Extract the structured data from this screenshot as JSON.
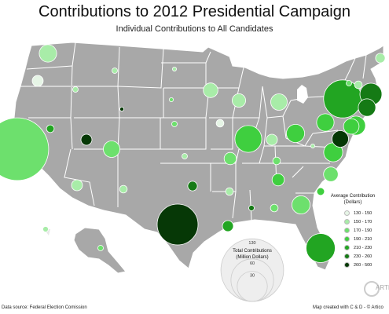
{
  "header": {
    "title": "Contributions to 2012 Presidential Campaign",
    "subtitle": "Individual Contributions to All Candidates"
  },
  "legend": {
    "title_line1": "Average Contribution",
    "title_line2": "(Dollars)",
    "items": [
      {
        "label": "130 - 150",
        "color": "#e6f5e6"
      },
      {
        "label": "150 - 170",
        "color": "#a8eca8"
      },
      {
        "label": "170 - 190",
        "color": "#6de06d"
      },
      {
        "label": "190 - 210",
        "color": "#3fcf3f"
      },
      {
        "label": "210 - 230",
        "color": "#22a522"
      },
      {
        "label": "230 - 260",
        "color": "#157a15"
      },
      {
        "label": "260 - 500",
        "color": "#063806"
      }
    ]
  },
  "size_legend": {
    "title_line1": "Total Contributions",
    "title_line2": "(Million Dollars)",
    "values": [
      130,
      60,
      30
    ]
  },
  "footer": {
    "source": "Data source: Federal Election Comission",
    "credit": "Map created with C & D - © Artico"
  },
  "logo_text": "ARTIC",
  "colors": {
    "land": "#a8a8a8",
    "border": "#ffffff",
    "background": "#ffffff"
  },
  "bubbles": [
    {
      "state": "WA",
      "color": "#a8eca8",
      "total": 10
    },
    {
      "state": "OR",
      "color": "#e6f5e6",
      "total": 4
    },
    {
      "state": "CA",
      "color": "#6de06d",
      "total": 130
    },
    {
      "state": "NV",
      "color": "#22a522",
      "total": 2
    },
    {
      "state": "ID",
      "color": "#a8eca8",
      "total": 1
    },
    {
      "state": "MT",
      "color": "#a8eca8",
      "total": 1
    },
    {
      "state": "WY",
      "color": "#063806",
      "total": 0.5
    },
    {
      "state": "UT",
      "color": "#063806",
      "total": 4
    },
    {
      "state": "AZ",
      "color": "#a8eca8",
      "total": 4
    },
    {
      "state": "NM",
      "color": "#a8eca8",
      "total": 2
    },
    {
      "state": "CO",
      "color": "#6de06d",
      "total": 9
    },
    {
      "state": "ND",
      "color": "#a8eca8",
      "total": 0.5
    },
    {
      "state": "SD",
      "color": "#6de06d",
      "total": 0.5
    },
    {
      "state": "NE",
      "color": "#6de06d",
      "total": 1
    },
    {
      "state": "KS",
      "color": "#a8eca8",
      "total": 1
    },
    {
      "state": "OK",
      "color": "#157a15",
      "total": 3
    },
    {
      "state": "TX",
      "color": "#063806",
      "total": 55
    },
    {
      "state": "MN",
      "color": "#a8eca8",
      "total": 7
    },
    {
      "state": "IA",
      "color": "#e6f5e6",
      "total": 2
    },
    {
      "state": "MO",
      "color": "#6de06d",
      "total": 5
    },
    {
      "state": "AR",
      "color": "#a8eca8",
      "total": 2
    },
    {
      "state": "LA",
      "color": "#22a522",
      "total": 4
    },
    {
      "state": "WI",
      "color": "#a8eca8",
      "total": 6
    },
    {
      "state": "IL",
      "color": "#3fcf3f",
      "total": 24
    },
    {
      "state": "MI",
      "color": "#a8eca8",
      "total": 9
    },
    {
      "state": "IN",
      "color": "#a8eca8",
      "total": 4
    },
    {
      "state": "OH",
      "color": "#3fcf3f",
      "total": 11
    },
    {
      "state": "KY",
      "color": "#6de06d",
      "total": 2
    },
    {
      "state": "TN",
      "color": "#3fcf3f",
      "total": 5
    },
    {
      "state": "MS",
      "color": "#157a15",
      "total": 1
    },
    {
      "state": "AL",
      "color": "#6de06d",
      "total": 2
    },
    {
      "state": "GA",
      "color": "#6de06d",
      "total": 11
    },
    {
      "state": "FL",
      "color": "#22a522",
      "total": 28
    },
    {
      "state": "SC",
      "color": "#3fcf3f",
      "total": 2
    },
    {
      "state": "NC",
      "color": "#6de06d",
      "total": 7
    },
    {
      "state": "VA",
      "color": "#3fcf3f",
      "total": 12
    },
    {
      "state": "WV",
      "color": "#a8eca8",
      "total": 0.5
    },
    {
      "state": "DC",
      "color": "#063806",
      "total": 9
    },
    {
      "state": "MD",
      "color": "#3fcf3f",
      "total": 8
    },
    {
      "state": "PA",
      "color": "#3fcf3f",
      "total": 10
    },
    {
      "state": "NY",
      "color": "#22a522",
      "total": 48
    },
    {
      "state": "NJ",
      "color": "#3fcf3f",
      "total": 12
    },
    {
      "state": "CT",
      "color": "#157a15",
      "total": 10
    },
    {
      "state": "MA",
      "color": "#157a15",
      "total": 16
    },
    {
      "state": "VT",
      "color": "#6de06d",
      "total": 1
    },
    {
      "state": "NH",
      "color": "#a8eca8",
      "total": 2
    },
    {
      "state": "ME",
      "color": "#a8eca8",
      "total": 3
    },
    {
      "state": "AK",
      "color": "#6de06d",
      "total": 1
    },
    {
      "state": "HI",
      "color": "#a8eca8",
      "total": 1
    }
  ]
}
